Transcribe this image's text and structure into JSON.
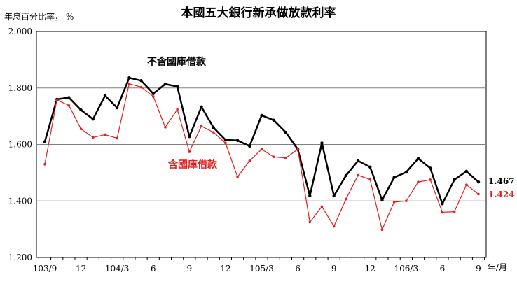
{
  "chart_data": {
    "type": "line",
    "title": "本國五大銀行新承做放款利率",
    "ylabel": "年息百分比率， %",
    "xlabel": "年/月",
    "ylim": [
      1.2,
      2.0
    ],
    "yticks": [
      "1.200",
      "1.400",
      "1.600",
      "1.800",
      "2.000"
    ],
    "x_tick_labels": [
      {
        "index": 0,
        "label": "103/9"
      },
      {
        "index": 3,
        "label": "12"
      },
      {
        "index": 6,
        "label": "104/3"
      },
      {
        "index": 9,
        "label": "6"
      },
      {
        "index": 12,
        "label": "9"
      },
      {
        "index": 15,
        "label": "12"
      },
      {
        "index": 18,
        "label": "105/3"
      },
      {
        "index": 21,
        "label": "6"
      },
      {
        "index": 24,
        "label": "9"
      },
      {
        "index": 27,
        "label": "12"
      },
      {
        "index": 30,
        "label": "106/3"
      },
      {
        "index": 33,
        "label": "6"
      },
      {
        "index": 36,
        "label": "9"
      }
    ],
    "grid": true,
    "series": [
      {
        "name": "不含國庫借款",
        "color": "#000000",
        "values": [
          1.61,
          1.76,
          1.766,
          1.722,
          1.69,
          1.773,
          1.73,
          1.836,
          1.826,
          1.78,
          1.814,
          1.805,
          1.628,
          1.733,
          1.66,
          1.616,
          1.614,
          1.594,
          1.703,
          1.686,
          1.643,
          1.583,
          1.418,
          1.605,
          1.418,
          1.49,
          1.542,
          1.52,
          1.403,
          1.483,
          1.502,
          1.55,
          1.516,
          1.39,
          1.475,
          1.505,
          1.467
        ],
        "end_label": "1.467"
      },
      {
        "name": "含國庫借款",
        "color": "#e02020",
        "values": [
          1.53,
          1.758,
          1.738,
          1.655,
          1.625,
          1.635,
          1.622,
          1.815,
          1.803,
          1.77,
          1.661,
          1.724,
          1.574,
          1.665,
          1.643,
          1.605,
          1.485,
          1.542,
          1.583,
          1.556,
          1.552,
          1.583,
          1.325,
          1.38,
          1.31,
          1.407,
          1.491,
          1.476,
          1.298,
          1.396,
          1.4,
          1.467,
          1.475,
          1.36,
          1.362,
          1.457,
          1.424
        ],
        "end_label": "1.424"
      }
    ]
  }
}
